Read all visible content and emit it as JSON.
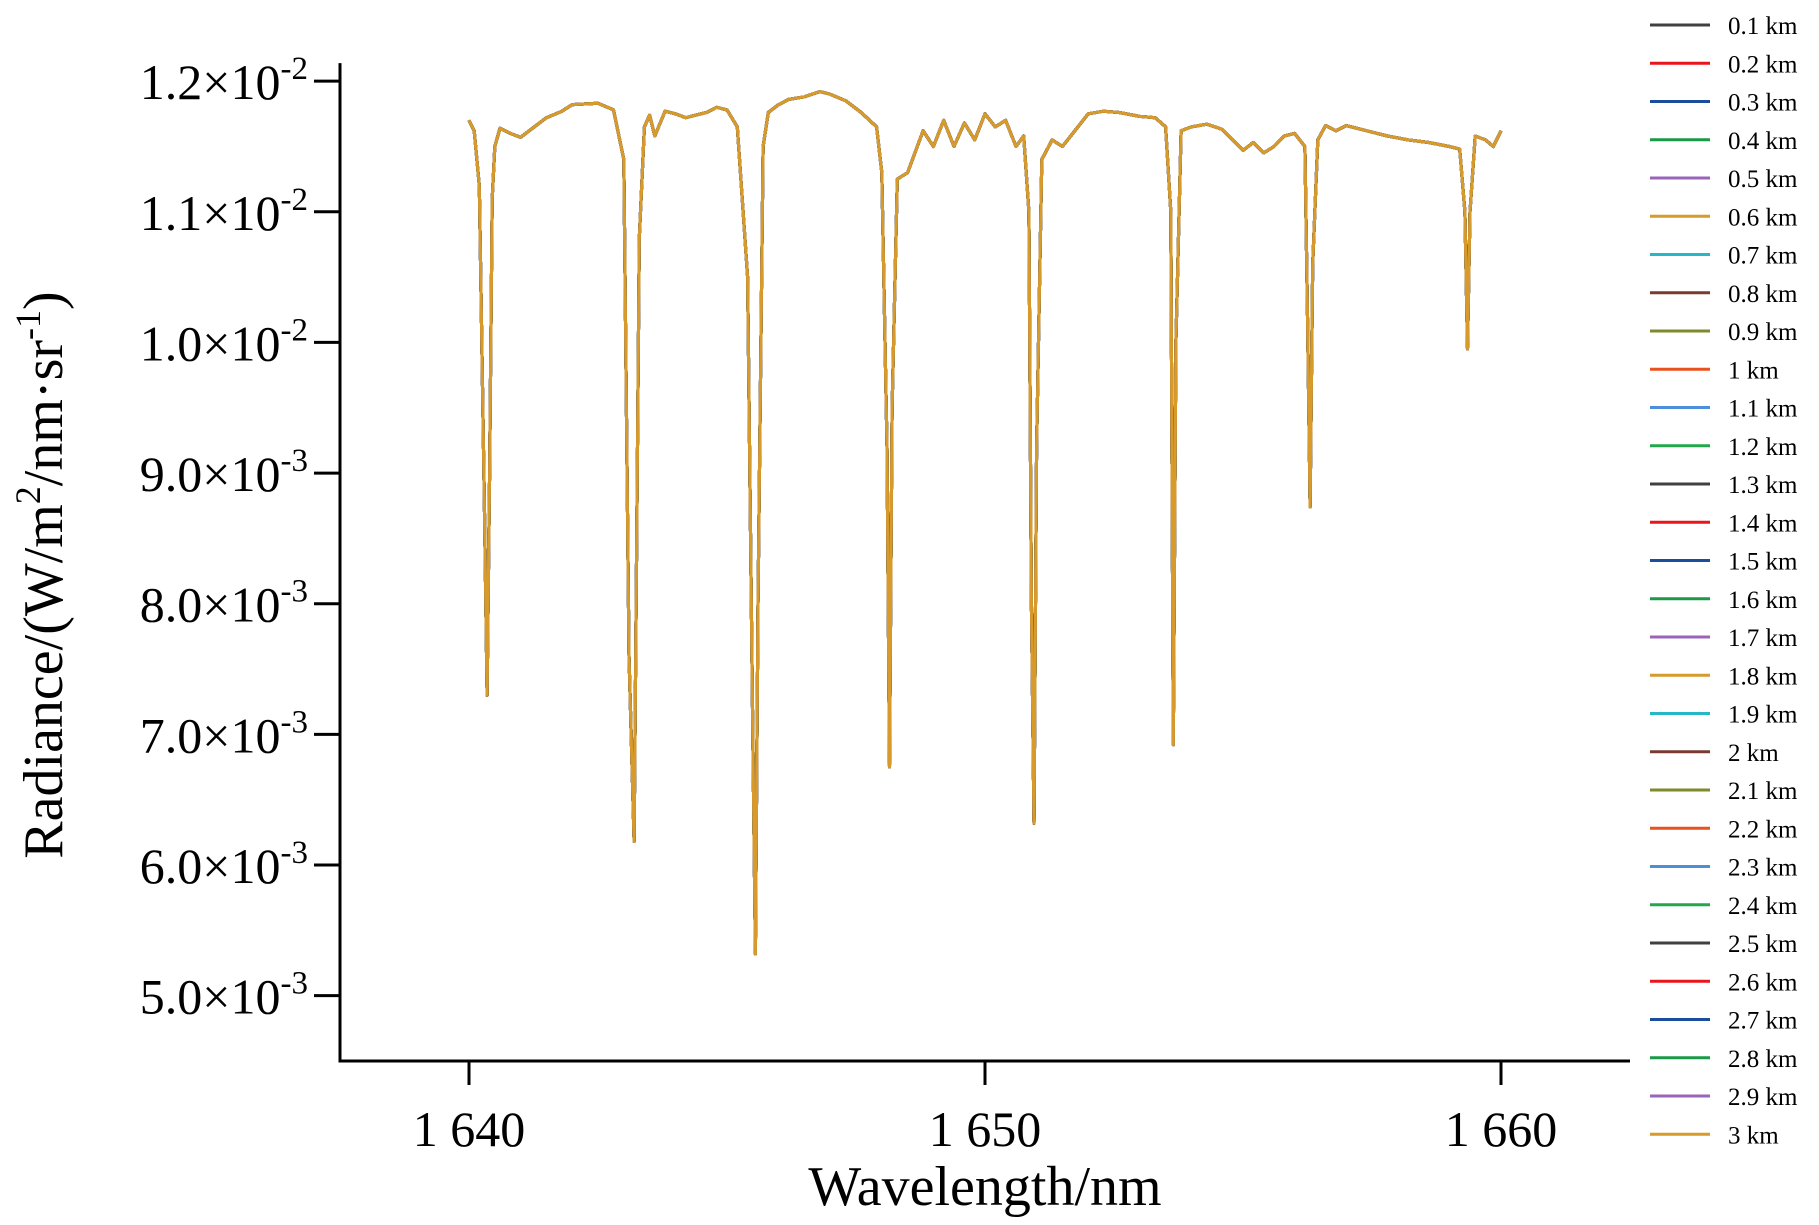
{
  "chart_data": {
    "type": "line",
    "title": "",
    "xlabel": "Wavelength/nm",
    "ylabel_parts": [
      "Radiance/(W/m",
      "2",
      "/nm·sr",
      "-1",
      ")"
    ],
    "xlim": [
      1637.5,
      1662.5
    ],
    "ylim": [
      0.0045,
      0.0122
    ],
    "x_ticks": [
      {
        "value": 1640,
        "label": "1 640"
      },
      {
        "value": 1650,
        "label": "1 650"
      },
      {
        "value": 1660,
        "label": "1 660"
      }
    ],
    "y_ticks": [
      {
        "value": 0.012,
        "mantissa": "1.2",
        "exp": "-2"
      },
      {
        "value": 0.011,
        "mantissa": "1.1",
        "exp": "-2"
      },
      {
        "value": 0.01,
        "mantissa": "1.0",
        "exp": "-2"
      },
      {
        "value": 0.009,
        "mantissa": "9.0",
        "exp": "-3"
      },
      {
        "value": 0.008,
        "mantissa": "8.0",
        "exp": "-3"
      },
      {
        "value": 0.007,
        "mantissa": "7.0",
        "exp": "-3"
      },
      {
        "value": 0.006,
        "mantissa": "6.0",
        "exp": "-3"
      },
      {
        "value": 0.005,
        "mantissa": "5.0",
        "exp": "-3"
      }
    ],
    "times_sign": "×10",
    "grid": false,
    "legend_position": "right",
    "series": [
      {
        "name": "0.1 km",
        "color": "#404040"
      },
      {
        "name": "0.2 km",
        "color": "#e8151b"
      },
      {
        "name": "0.3 km",
        "color": "#1a4e9c"
      },
      {
        "name": "0.4 km",
        "color": "#1a9a48"
      },
      {
        "name": "0.5 km",
        "color": "#9a64b8"
      },
      {
        "name": "0.6 km",
        "color": "#d89a28"
      },
      {
        "name": "0.7 km",
        "color": "#26b8c8"
      },
      {
        "name": "0.8 km",
        "color": "#7a3a32"
      },
      {
        "name": "0.9 km",
        "color": "#7f8a2a"
      },
      {
        "name": "1 km",
        "color": "#e8521e"
      },
      {
        "name": "1.1 km",
        "color": "#4a90d8"
      },
      {
        "name": "1.2 km",
        "color": "#22a84a"
      },
      {
        "name": "1.3 km",
        "color": "#404040"
      },
      {
        "name": "1.4 km",
        "color": "#e8151b"
      },
      {
        "name": "1.5 km",
        "color": "#1a4e9c"
      },
      {
        "name": "1.6 km",
        "color": "#1a9a48"
      },
      {
        "name": "1.7 km",
        "color": "#9a64b8"
      },
      {
        "name": "1.8 km",
        "color": "#d89a28"
      },
      {
        "name": "1.9 km",
        "color": "#26b8c8"
      },
      {
        "name": "2 km",
        "color": "#7a3a32"
      },
      {
        "name": "2.1 km",
        "color": "#7f8a2a"
      },
      {
        "name": "2.2 km",
        "color": "#e8521e"
      },
      {
        "name": "2.3 km",
        "color": "#4a90d8"
      },
      {
        "name": "2.4 km",
        "color": "#22a84a"
      },
      {
        "name": "2.5 km",
        "color": "#404040"
      },
      {
        "name": "2.6 km",
        "color": "#e8151b"
      },
      {
        "name": "2.7 km",
        "color": "#1a4e9c"
      },
      {
        "name": "2.8 km",
        "color": "#1a9a48"
      },
      {
        "name": "2.9 km",
        "color": "#9a64b8"
      },
      {
        "name": "3 km",
        "color": "#d89a28"
      }
    ],
    "spectrum": {
      "note_series_overlap": true,
      "x": [
        1640.0,
        1640.1,
        1640.2,
        1640.3,
        1640.35,
        1640.4,
        1640.45,
        1640.5,
        1640.6,
        1640.8,
        1641.0,
        1641.2,
        1641.5,
        1641.8,
        1642.0,
        1642.5,
        1642.8,
        1643.0,
        1643.1,
        1643.2,
        1643.3,
        1643.4,
        1643.5,
        1643.6,
        1643.8,
        1644.0,
        1644.2,
        1644.4,
        1644.6,
        1644.8,
        1645.0,
        1645.2,
        1645.4,
        1645.5,
        1645.55,
        1645.6,
        1645.7,
        1645.8,
        1646.0,
        1646.2,
        1646.5,
        1646.8,
        1647.0,
        1647.3,
        1647.6,
        1647.9,
        1648.0,
        1648.1,
        1648.15,
        1648.2,
        1648.3,
        1648.5,
        1648.8,
        1649.0,
        1649.2,
        1649.4,
        1649.6,
        1649.8,
        1650.0,
        1650.2,
        1650.4,
        1650.6,
        1650.75,
        1650.85,
        1650.9,
        1650.95,
        1651.0,
        1651.1,
        1651.3,
        1651.5,
        1651.8,
        1652.0,
        1652.3,
        1652.6,
        1653.0,
        1653.3,
        1653.5,
        1653.6,
        1653.65,
        1653.7,
        1653.8,
        1654.0,
        1654.3,
        1654.6,
        1654.8,
        1655.0,
        1655.2,
        1655.4,
        1655.6,
        1655.8,
        1656.0,
        1656.2,
        1656.25,
        1656.3,
        1656.35,
        1656.45,
        1656.6,
        1656.8,
        1657.0,
        1657.4,
        1657.8,
        1658.2,
        1658.6,
        1659.0,
        1659.2,
        1659.3,
        1659.35,
        1659.4,
        1659.5,
        1659.7,
        1659.85,
        1660.0
      ],
      "y": [
        0.0117,
        0.01162,
        0.0112,
        0.0087,
        0.0073,
        0.009,
        0.0111,
        0.0115,
        0.01164,
        0.0116,
        0.01157,
        0.01163,
        0.01172,
        0.01177,
        0.01182,
        0.01183,
        0.01178,
        0.0114,
        0.0076,
        0.00618,
        0.0108,
        0.01165,
        0.01174,
        0.01158,
        0.01177,
        0.01175,
        0.01172,
        0.01174,
        0.01176,
        0.0118,
        0.01178,
        0.01165,
        0.0105,
        0.007,
        0.00532,
        0.008,
        0.0115,
        0.01176,
        0.01182,
        0.01186,
        0.01188,
        0.01192,
        0.0119,
        0.01185,
        0.01176,
        0.01165,
        0.0113,
        0.0092,
        0.00675,
        0.0095,
        0.01125,
        0.0113,
        0.01162,
        0.0115,
        0.0117,
        0.0115,
        0.01168,
        0.01155,
        0.01175,
        0.01165,
        0.0117,
        0.0115,
        0.01158,
        0.011,
        0.008,
        0.00632,
        0.0092,
        0.0114,
        0.01155,
        0.0115,
        0.01165,
        0.01175,
        0.01177,
        0.01176,
        0.01173,
        0.01172,
        0.01165,
        0.011,
        0.00692,
        0.01,
        0.01162,
        0.01165,
        0.01167,
        0.01163,
        0.01155,
        0.01147,
        0.01153,
        0.01145,
        0.0115,
        0.01158,
        0.0116,
        0.0115,
        0.0102,
        0.00874,
        0.0106,
        0.01155,
        0.01166,
        0.01162,
        0.01166,
        0.01162,
        0.01158,
        0.01155,
        0.01153,
        0.0115,
        0.01148,
        0.011,
        0.00995,
        0.011,
        0.01158,
        0.01155,
        0.0115,
        0.01162
      ]
    }
  }
}
